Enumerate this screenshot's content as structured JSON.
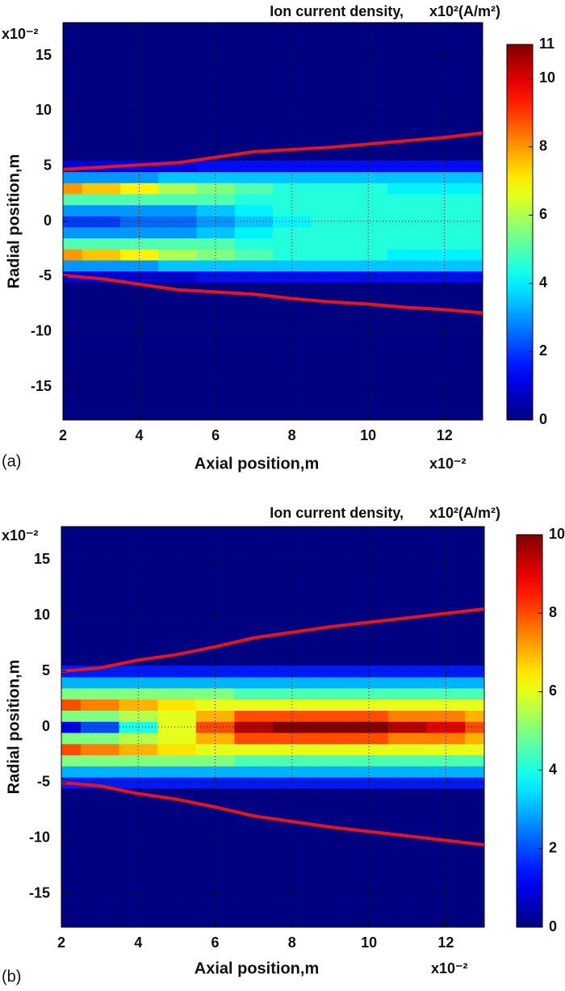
{
  "chart_data": [
    {
      "type": "contour",
      "panel": "(a)",
      "title": "Ion current density,",
      "colorbar_label": "x10²(A/m²)",
      "x_label": "Axial position,m",
      "y_label": "Radial position,m",
      "x_exponent": "x10⁻²",
      "y_exponent": "x10⁻²",
      "colormap": "jet",
      "background_value": 0,
      "grid": true,
      "xlim": [
        2,
        13
      ],
      "xticks": [
        2,
        4,
        6,
        8,
        10,
        12
      ],
      "ylim": [
        -18,
        18
      ],
      "yticks": [
        -15,
        -10,
        -5,
        0,
        5,
        10,
        15
      ],
      "clim": [
        0,
        11
      ],
      "cticks": [
        0,
        2,
        4,
        6,
        8,
        10,
        11
      ],
      "x": [
        2,
        3,
        4,
        5,
        6,
        7,
        8,
        9,
        10,
        11,
        12,
        13
      ],
      "y": [
        -5,
        -4,
        -3,
        -2,
        -1,
        0,
        1,
        2,
        3,
        4,
        5
      ],
      "z": [
        [
          1,
          1,
          1,
          1,
          1.5,
          1.5,
          1.5,
          1.5,
          1.5,
          1.5,
          1.5,
          1.5
        ],
        [
          3,
          3,
          3,
          3.5,
          3.5,
          3.5,
          3.5,
          3.5,
          3.5,
          3.5,
          3.5,
          3.5
        ],
        [
          8,
          7.5,
          7,
          6,
          5.5,
          5,
          4.5,
          4.5,
          4.5,
          4,
          4,
          4
        ],
        [
          5,
          5,
          5,
          5,
          5,
          4.5,
          4.5,
          4.5,
          4.5,
          4.5,
          4.5,
          4.5
        ],
        [
          3,
          3,
          3,
          3,
          3.5,
          4,
          4.5,
          4.5,
          4.5,
          4.5,
          4.5,
          4.5
        ],
        [
          2,
          2,
          2.5,
          2.5,
          3,
          3.5,
          4,
          4.5,
          4.5,
          4.5,
          4.5,
          4.5
        ],
        [
          3,
          3,
          3,
          3,
          3.5,
          4,
          4.5,
          4.5,
          4.5,
          4.5,
          4.5,
          4.5
        ],
        [
          5,
          5,
          5,
          5,
          5,
          4.5,
          4.5,
          4.5,
          4.5,
          4.5,
          4.5,
          4.5
        ],
        [
          8,
          7.5,
          7,
          6,
          5.5,
          5,
          4.5,
          4.5,
          4.5,
          4,
          4,
          4
        ],
        [
          3,
          3,
          3,
          3.5,
          3.5,
          3.5,
          3.5,
          3.5,
          3.5,
          3.5,
          3.5,
          3.5
        ],
        [
          1,
          1,
          1,
          1,
          1.5,
          1.5,
          1.5,
          1.5,
          1.5,
          1.5,
          1.5,
          1.5
        ]
      ],
      "series": [
        {
          "color": "#e8141c",
          "values": [
            4.7,
            4.9,
            5.1,
            5.3,
            5.8,
            6.3,
            6.5,
            6.7,
            7,
            7.3,
            7.6,
            8
          ]
        },
        {
          "color": "#e8141c",
          "values": [
            -4.9,
            -5.2,
            -5.7,
            -6.2,
            -6.4,
            -6.6,
            -7,
            -7.3,
            -7.5,
            -7.8,
            -8,
            -8.3
          ]
        }
      ]
    },
    {
      "type": "contour",
      "panel": "(b)",
      "title": "Ion current density,",
      "colorbar_label": "x10²(A/m²)",
      "x_label": "Axial position,m",
      "y_label": "Radial position,m",
      "x_exponent": "x10⁻²",
      "y_exponent": "x10⁻²",
      "colormap": "jet",
      "background_value": 0,
      "grid": true,
      "xlim": [
        2,
        13
      ],
      "xticks": [
        2,
        4,
        6,
        8,
        10,
        12
      ],
      "ylim": [
        -18,
        18
      ],
      "yticks": [
        -15,
        -10,
        -5,
        0,
        5,
        10,
        15
      ],
      "clim": [
        0,
        10
      ],
      "cticks": [
        0,
        2,
        4,
        6,
        8,
        10
      ],
      "x": [
        2,
        3,
        4,
        5,
        6,
        7,
        8,
        9,
        10,
        11,
        12,
        13
      ],
      "y": [
        -5,
        -4,
        -3,
        -2,
        -1,
        0,
        1,
        2,
        3,
        4,
        5
      ],
      "z": [
        [
          1.5,
          1.5,
          1.5,
          1.5,
          1.5,
          1.5,
          1.5,
          1.5,
          1.5,
          1.5,
          1.5,
          1.5
        ],
        [
          3,
          3,
          3,
          3,
          3,
          3,
          3,
          3,
          3,
          3,
          3,
          3
        ],
        [
          5,
          5,
          5,
          5,
          5,
          4.5,
          4.5,
          4.5,
          4.5,
          4.5,
          4.5,
          4.5
        ],
        [
          8,
          7.5,
          7,
          6.5,
          6,
          6,
          6,
          6,
          6,
          6,
          6,
          6
        ],
        [
          5,
          5,
          5.5,
          6,
          7,
          8,
          8,
          8,
          8,
          7.5,
          7.5,
          7
        ],
        [
          1,
          2,
          4,
          6,
          8,
          9.5,
          10,
          10,
          10,
          9.5,
          9,
          8
        ],
        [
          5,
          5,
          5.5,
          6,
          7,
          8,
          8,
          8,
          8,
          7.5,
          7.5,
          7
        ],
        [
          8,
          7.5,
          7,
          6.5,
          6,
          6,
          6,
          6,
          6,
          6,
          6,
          6
        ],
        [
          5,
          5,
          5,
          5,
          5,
          4.5,
          4.5,
          4.5,
          4.5,
          4.5,
          4.5,
          4.5
        ],
        [
          3,
          3,
          3,
          3,
          3,
          3,
          3,
          3,
          3,
          3,
          3,
          3
        ],
        [
          1.5,
          1.5,
          1.5,
          1.5,
          1.5,
          1.5,
          1.5,
          1.5,
          1.5,
          1.5,
          1.5,
          1.5
        ]
      ],
      "series": [
        {
          "color": "#e8141c",
          "values": [
            5,
            5.3,
            6,
            6.5,
            7.2,
            8,
            8.5,
            9,
            9.4,
            9.8,
            10.2,
            10.6
          ]
        },
        {
          "color": "#e8141c",
          "values": [
            -5,
            -5.3,
            -6,
            -6.5,
            -7.2,
            -8,
            -8.5,
            -9,
            -9.4,
            -9.8,
            -10.2,
            -10.6
          ]
        }
      ]
    }
  ]
}
